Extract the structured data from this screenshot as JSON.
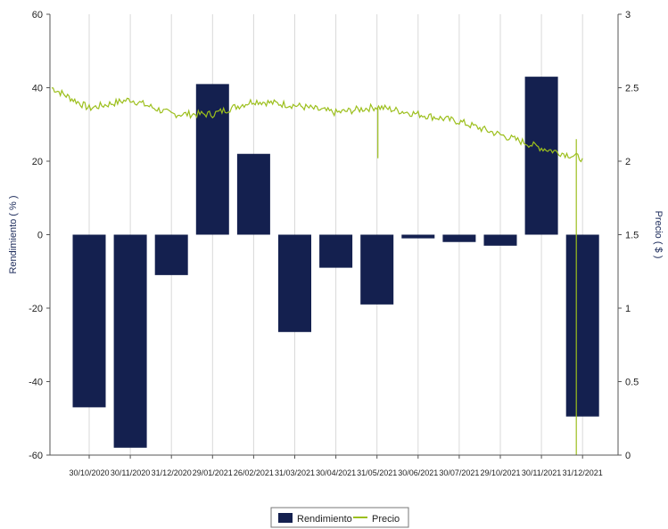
{
  "chart_data": {
    "type": "bar+line",
    "categories": [
      "30/10/2020",
      "30/11/2020",
      "31/12/2020",
      "29/01/2021",
      "26/02/2021",
      "31/03/2021",
      "30/04/2021",
      "31/05/2021",
      "30/06/2021",
      "30/07/2021",
      "29/10/2021",
      "30/11/2021",
      "31/12/2021"
    ],
    "series": [
      {
        "name": "Rendimiento",
        "type": "bar",
        "axis": "left",
        "color": "#14204f",
        "values": [
          -47,
          -58,
          -11,
          41,
          22,
          -26.5,
          -9,
          -19,
          -1,
          -2,
          -3,
          43,
          -49.5
        ]
      },
      {
        "name": "Precio",
        "type": "line",
        "axis": "right",
        "color": "#9cbf1c",
        "values": [
          2.36,
          2.42,
          2.32,
          2.32,
          2.41,
          2.38,
          2.33,
          2.37,
          2.32,
          2.27,
          2.18,
          2.09,
          2.02
        ]
      }
    ],
    "y_left": {
      "label": "Rendimiento  ( %  )",
      "ylim": [
        -60,
        60
      ],
      "ticks": [
        -60,
        -40,
        -20,
        0,
        20,
        40,
        60
      ]
    },
    "y_right": {
      "label": "Precio  ( $  )",
      "ylim": [
        0,
        3
      ],
      "ticks": [
        "0",
        "0.5",
        "1",
        "1.5",
        "2",
        "2.5",
        "3"
      ]
    },
    "grid": "vertical",
    "legend": {
      "position": "bottom-center",
      "items": [
        "Rendimiento",
        "Precio"
      ]
    }
  }
}
